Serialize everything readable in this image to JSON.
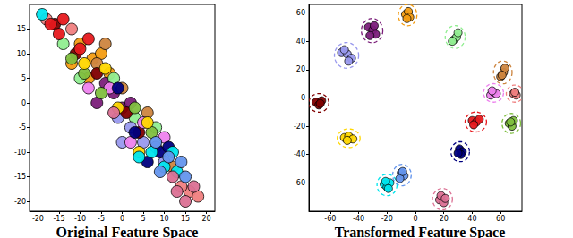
{
  "chart_data": [
    {
      "type": "scatter",
      "title": "Original Feature Space",
      "xlim": [
        -22,
        22
      ],
      "ylim": [
        -22,
        20
      ],
      "xticks": [
        -20,
        -15,
        -10,
        -5,
        0,
        5,
        10,
        15,
        20
      ],
      "yticks": [
        -20,
        -15,
        -10,
        -5,
        0,
        5,
        10,
        15
      ],
      "tick_labels": true,
      "grid": false,
      "series": [
        {
          "color": "#f39c12",
          "x": [
            -10,
            -7,
            -5,
            -12,
            -3,
            -8
          ],
          "y": [
            12,
            9,
            10,
            8,
            6,
            5
          ]
        },
        {
          "color": "#7b1f7a",
          "x": [
            -2,
            0,
            -4,
            2,
            -6
          ],
          "y": [
            2,
            -1,
            4,
            0,
            0
          ]
        },
        {
          "color": "#90ee90",
          "x": [
            -14,
            -10,
            -2,
            3,
            8
          ],
          "y": [
            12,
            5,
            5,
            -3,
            -5
          ]
        },
        {
          "color": "#9999ee",
          "x": [
            2,
            5,
            0,
            8,
            10,
            -1
          ],
          "y": [
            -5,
            -8,
            -8,
            -9,
            -12,
            -3
          ]
        },
        {
          "color": "#cd853f",
          "x": [
            -6,
            -4,
            0,
            6,
            12
          ],
          "y": [
            8,
            12,
            3,
            -2,
            -13
          ]
        },
        {
          "color": "#800000",
          "x": [
            -16,
            -11,
            -6,
            4,
            1
          ],
          "y": [
            16,
            10,
            6,
            -6,
            -2
          ]
        },
        {
          "color": "#ee82ee",
          "x": [
            -3,
            2,
            5,
            -8,
            10
          ],
          "y": [
            3,
            -8,
            -4,
            3,
            -7
          ]
        },
        {
          "color": "#f08080",
          "x": [
            -18,
            -12,
            16,
            18,
            14
          ],
          "y": [
            17,
            15,
            -18,
            -19,
            -17
          ]
        },
        {
          "color": "#e6191e",
          "x": [
            -15,
            -14,
            -10,
            -8,
            -17
          ],
          "y": [
            14,
            17,
            11,
            13,
            16
          ]
        },
        {
          "color": "#7fbf3f",
          "x": [
            -12,
            -5,
            3,
            7,
            -9
          ],
          "y": [
            9,
            2,
            -1,
            -6,
            6
          ]
        },
        {
          "color": "#ffd700",
          "x": [
            -9,
            -1,
            6,
            4,
            -4
          ],
          "y": [
            8,
            -1,
            -4,
            -10,
            7
          ]
        },
        {
          "color": "#000080",
          "x": [
            -1,
            3,
            9,
            11,
            6
          ],
          "y": [
            3,
            -6,
            -10,
            -9,
            -12
          ]
        },
        {
          "color": "#00e5ee",
          "x": [
            -19,
            4,
            10,
            13,
            12,
            7
          ],
          "y": [
            18,
            -11,
            -13,
            -14,
            -10,
            -10
          ]
        },
        {
          "color": "#6495ed",
          "x": [
            8,
            11,
            14,
            15,
            9
          ],
          "y": [
            -8,
            -11,
            -12,
            -15,
            -14
          ]
        },
        {
          "color": "#db7093",
          "x": [
            13,
            17,
            15,
            12,
            -2
          ],
          "y": [
            -18,
            -17,
            -20,
            -15,
            -2
          ]
        }
      ]
    },
    {
      "type": "scatter",
      "title": "Transformed Feature Space",
      "xlim": [
        -75,
        75
      ],
      "ylim": [
        -80,
        66
      ],
      "xticks": [
        -60,
        -40,
        -20,
        0,
        20,
        40,
        60
      ],
      "yticks": [
        -60,
        -40,
        -20,
        0,
        20,
        40,
        60
      ],
      "tick_labels": true,
      "grid": false,
      "series": [
        {
          "color": "#f39c12",
          "x": [
            -7,
            -5,
            -4,
            -6
          ],
          "y": [
            59,
            61,
            57,
            56
          ]
        },
        {
          "color": "#7b1f7a",
          "x": [
            -33,
            -30,
            -28,
            -32,
            -29
          ],
          "y": [
            50,
            48,
            45,
            44,
            51
          ]
        },
        {
          "color": "#90ee90",
          "x": [
            27,
            29,
            26,
            30
          ],
          "y": [
            41,
            43,
            40,
            46
          ]
        },
        {
          "color": "#9999ee",
          "x": [
            -52,
            -48,
            -45,
            -47,
            -50
          ],
          "y": [
            32,
            31,
            28,
            26,
            34
          ]
        },
        {
          "color": "#cd853f",
          "x": [
            60,
            62,
            63,
            61
          ],
          "y": [
            15,
            18,
            21,
            16
          ]
        },
        {
          "color": "#800000",
          "x": [
            -70,
            -68,
            -66,
            -67
          ],
          "y": [
            -3,
            -5,
            -2,
            -4
          ]
        },
        {
          "color": "#ee82ee",
          "x": [
            53,
            55,
            57,
            54
          ],
          "y": [
            2,
            4,
            3,
            5
          ]
        },
        {
          "color": "#f08080",
          "x": [
            69,
            71,
            70
          ],
          "y": [
            3,
            2,
            4
          ]
        },
        {
          "color": "#e6191e",
          "x": [
            40,
            43,
            45,
            41
          ],
          "y": [
            -16,
            -17,
            -15,
            -19
          ]
        },
        {
          "color": "#7fbf3f",
          "x": [
            66,
            68,
            69,
            67
          ],
          "y": [
            -18,
            -20,
            -16,
            -17
          ]
        },
        {
          "color": "#ffd700",
          "x": [
            -50,
            -47,
            -44,
            -48
          ],
          "y": [
            -28,
            -27,
            -29,
            -30
          ]
        },
        {
          "color": "#000080",
          "x": [
            31,
            33,
            32,
            30
          ],
          "y": [
            -36,
            -38,
            -40,
            -39
          ]
        },
        {
          "color": "#00e5ee",
          "x": [
            -22,
            -20,
            -18,
            -21,
            -19
          ],
          "y": [
            -61,
            -63,
            -60,
            -59,
            -64
          ]
        },
        {
          "color": "#6495ed",
          "x": [
            -10,
            -8,
            -11,
            -9
          ],
          "y": [
            -53,
            -55,
            -57,
            -52
          ]
        },
        {
          "color": "#db7093",
          "x": [
            17,
            20,
            18,
            21
          ],
          "y": [
            -72,
            -74,
            -69,
            -71
          ]
        }
      ]
    }
  ]
}
